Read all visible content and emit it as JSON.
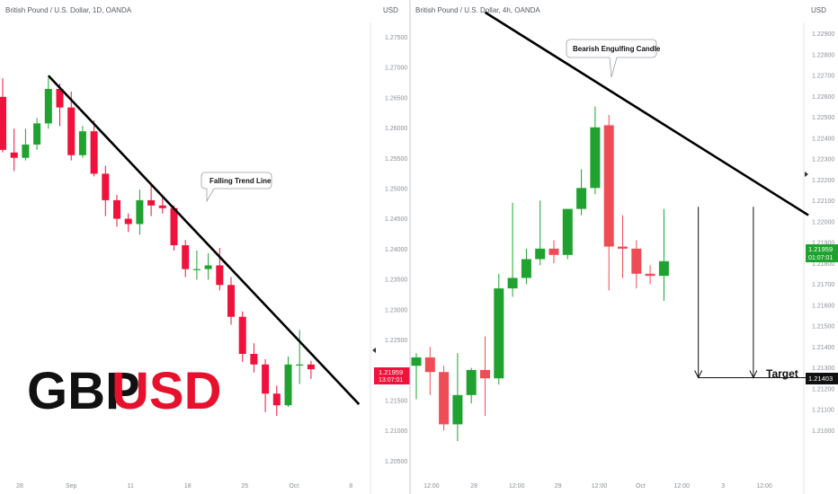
{
  "chart_data": [
    {
      "type": "candlestick",
      "title": "British Pound / U.S. Dollar, 1D, OANDA",
      "currency_label": "USD",
      "y_ticks": [
        "1.27500",
        "1.27000",
        "1.26500",
        "1.26000",
        "1.25500",
        "1.25000",
        "1.24500",
        "1.24000",
        "1.23500",
        "1.23000",
        "1.22500",
        "1.22000",
        "1.21500",
        "1.21000",
        "1.20500"
      ],
      "ylim": [
        1.2025,
        1.2825
      ],
      "x_ticks": [
        "28",
        "Sep",
        "11",
        "18",
        "25",
        "Oct",
        "8"
      ],
      "x_tick_candle_index": [
        1.5,
        6,
        11.2,
        16.2,
        21.2,
        25.5,
        30.5
      ],
      "current_price": "1.21959",
      "current_time": "13:07:01",
      "candles": [
        {
          "o": 1.271,
          "h": 1.2745,
          "l": 1.2605,
          "c": 1.261
        },
        {
          "o": 1.2605,
          "h": 1.265,
          "l": 1.257,
          "c": 1.2595
        },
        {
          "o": 1.2595,
          "h": 1.265,
          "l": 1.259,
          "c": 1.262
        },
        {
          "o": 1.262,
          "h": 1.267,
          "l": 1.261,
          "c": 1.266
        },
        {
          "o": 1.266,
          "h": 1.2745,
          "l": 1.265,
          "c": 1.2725
        },
        {
          "o": 1.2725,
          "h": 1.2735,
          "l": 1.2655,
          "c": 1.269
        },
        {
          "o": 1.269,
          "h": 1.272,
          "l": 1.259,
          "c": 1.26
        },
        {
          "o": 1.26,
          "h": 1.2655,
          "l": 1.2595,
          "c": 1.2645
        },
        {
          "o": 1.2645,
          "h": 1.2665,
          "l": 1.256,
          "c": 1.2565
        },
        {
          "o": 1.2565,
          "h": 1.258,
          "l": 1.2485,
          "c": 1.2515
        },
        {
          "o": 1.2515,
          "h": 1.2525,
          "l": 1.2465,
          "c": 1.248
        },
        {
          "o": 1.248,
          "h": 1.249,
          "l": 1.2455,
          "c": 1.247
        },
        {
          "o": 1.247,
          "h": 1.2535,
          "l": 1.245,
          "c": 1.2515
        },
        {
          "o": 1.2515,
          "h": 1.2545,
          "l": 1.2485,
          "c": 1.2505
        },
        {
          "o": 1.2505,
          "h": 1.2525,
          "l": 1.249,
          "c": 1.25
        },
        {
          "o": 1.25,
          "h": 1.2505,
          "l": 1.242,
          "c": 1.243
        },
        {
          "o": 1.243,
          "h": 1.244,
          "l": 1.237,
          "c": 1.2385
        },
        {
          "o": 1.2385,
          "h": 1.242,
          "l": 1.2365,
          "c": 1.2385
        },
        {
          "o": 1.2385,
          "h": 1.2415,
          "l": 1.2365,
          "c": 1.2392
        },
        {
          "o": 1.2392,
          "h": 1.2425,
          "l": 1.2345,
          "c": 1.2355
        },
        {
          "o": 1.2355,
          "h": 1.237,
          "l": 1.228,
          "c": 1.2295
        },
        {
          "o": 1.2295,
          "h": 1.2305,
          "l": 1.221,
          "c": 1.2225
        },
        {
          "o": 1.2225,
          "h": 1.2245,
          "l": 1.219,
          "c": 1.2205
        },
        {
          "o": 1.2205,
          "h": 1.2215,
          "l": 1.2115,
          "c": 1.215
        },
        {
          "o": 1.215,
          "h": 1.2165,
          "l": 1.2108,
          "c": 1.2128
        },
        {
          "o": 1.2128,
          "h": 1.222,
          "l": 1.2125,
          "c": 1.2205
        },
        {
          "o": 1.2205,
          "h": 1.227,
          "l": 1.2168,
          "c": 1.2205
        },
        {
          "o": 1.2205,
          "h": 1.2212,
          "l": 1.2178,
          "c": 1.2196
        }
      ],
      "trend_line": {
        "label": "Falling Trend Line",
        "from": {
          "i": 4,
          "y": 1.275
        },
        "to": {
          "i": 31.2,
          "y": 1.213
        }
      },
      "watermark": {
        "part1": "GBP",
        "part2": "USD"
      }
    },
    {
      "type": "candlestick",
      "title": "British Pound / U.S. Dollar, 4h, OANDA",
      "currency_label": "USD",
      "y_ticks": [
        "1.22900",
        "1.22800",
        "1.22700",
        "1.22600",
        "1.22500",
        "1.22400",
        "1.22300",
        "1.22200",
        "1.22100",
        "1.22000",
        "1.21900",
        "1.21800",
        "1.21700",
        "1.21600",
        "1.21500",
        "1.21400",
        "1.21300",
        "1.21200",
        "1.21100",
        "1.21000"
      ],
      "ylim": [
        1.2095,
        1.2305
      ],
      "x_ticks": [
        "12:00",
        "28",
        "12:00",
        "29",
        "12:00",
        "Oct",
        "12:00",
        "3",
        "12:00"
      ],
      "x_tick_candle_index": [
        1.1,
        4.2,
        7.3,
        10.3,
        13.3,
        16.3,
        19.3,
        22.3,
        25.3
      ],
      "current_price": "1.21959",
      "current_time": "01:07:01",
      "target_price": "1.21403",
      "candles": [
        {
          "o": 1.2146,
          "h": 1.2152,
          "l": 1.213,
          "c": 1.215
        },
        {
          "o": 1.215,
          "h": 1.2155,
          "l": 1.2132,
          "c": 1.2143
        },
        {
          "o": 1.2143,
          "h": 1.2146,
          "l": 1.2115,
          "c": 1.2118
        },
        {
          "o": 1.2118,
          "h": 1.2152,
          "l": 1.211,
          "c": 1.2132
        },
        {
          "o": 1.2132,
          "h": 1.2145,
          "l": 1.2128,
          "c": 1.2144
        },
        {
          "o": 1.2144,
          "h": 1.216,
          "l": 1.2122,
          "c": 1.214
        },
        {
          "o": 1.214,
          "h": 1.219,
          "l": 1.2137,
          "c": 1.2183
        },
        {
          "o": 1.2183,
          "h": 1.2224,
          "l": 1.2179,
          "c": 1.2188
        },
        {
          "o": 1.2188,
          "h": 1.2202,
          "l": 1.2185,
          "c": 1.2197
        },
        {
          "o": 1.2197,
          "h": 1.2225,
          "l": 1.2194,
          "c": 1.2202
        },
        {
          "o": 1.2202,
          "h": 1.2206,
          "l": 1.2195,
          "c": 1.2199
        },
        {
          "o": 1.2199,
          "h": 1.222,
          "l": 1.2197,
          "c": 1.2221
        },
        {
          "o": 1.2221,
          "h": 1.224,
          "l": 1.2218,
          "c": 1.2231
        },
        {
          "o": 1.2231,
          "h": 1.227,
          "l": 1.2228,
          "c": 1.226
        },
        {
          "o": 1.2261,
          "h": 1.2266,
          "l": 1.2182,
          "c": 1.2203
        },
        {
          "o": 1.2203,
          "h": 1.2218,
          "l": 1.2188,
          "c": 1.2202
        },
        {
          "o": 1.2202,
          "h": 1.2206,
          "l": 1.2183,
          "c": 1.219
        },
        {
          "o": 1.219,
          "h": 1.2194,
          "l": 1.2185,
          "c": 1.2189
        },
        {
          "o": 1.2189,
          "h": 1.2221,
          "l": 1.2177,
          "c": 1.2196
        }
      ],
      "trend_line": {
        "from": {
          "i": 5.0,
          "y": 1.2315
        },
        "to": {
          "i": 28.5,
          "y": 1.2218
        }
      },
      "target_arrows": [
        {
          "i": 20.5,
          "y": 1.2222
        },
        {
          "i": 24.5,
          "y": 1.2222
        }
      ],
      "target_line_end_i": 28.5,
      "labels": {
        "bearish": "Bearish Engulfing Candle",
        "target": "Target"
      }
    }
  ],
  "colors": {
    "bull": "#1fa22f",
    "bear": "#f0123a",
    "bear_light": "#ef4d55",
    "price_tag_d": "#f0123a",
    "price_tag_4h": "#1fa22f",
    "axis_text": "#8a8f99"
  }
}
